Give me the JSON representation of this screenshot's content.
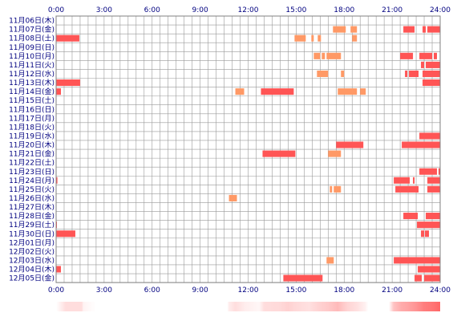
{
  "chart_data": {
    "type": "heatmap",
    "title": "",
    "xlabel": "",
    "ylabel": "",
    "xlim": [
      0,
      24
    ],
    "x_ticks": [
      "0:00",
      "3:00",
      "6:00",
      "9:00",
      "12:00",
      "15:00",
      "18:00",
      "21:00",
      "24:00"
    ],
    "grid": true,
    "colors": {
      "bar_light": "#ff9966",
      "bar_dark": "#ff5555",
      "grid": "#999999",
      "labels": "#000080",
      "density_base": "#ffffff",
      "density_peak": "#ff6666"
    },
    "rows": [
      {
        "label": "11月06日(木)",
        "segments": []
      },
      {
        "label": "11月07日(金)",
        "segments": [
          [
            17.3,
            18.1
          ],
          [
            18.4,
            18.8
          ],
          [
            21.7,
            22.4
          ],
          [
            22.9,
            23.1
          ],
          [
            23.2,
            24.0
          ]
        ]
      },
      {
        "label": "11月08日(土)",
        "segments": [
          [
            0.0,
            1.45
          ],
          [
            14.9,
            15.6
          ],
          [
            15.95,
            16.1
          ],
          [
            16.35,
            16.55
          ],
          [
            18.5,
            18.8
          ]
        ]
      },
      {
        "label": "11月09日(日)",
        "segments": []
      },
      {
        "label": "11月10日(月)",
        "segments": [
          [
            16.1,
            16.5
          ],
          [
            16.6,
            16.8
          ],
          [
            16.9,
            17.8
          ],
          [
            21.5,
            22.3
          ],
          [
            22.7,
            23.5
          ],
          [
            23.6,
            23.8
          ]
        ]
      },
      {
        "label": "11月11日(火)",
        "segments": [
          [
            22.8,
            23.0
          ],
          [
            23.1,
            24.0
          ]
        ]
      },
      {
        "label": "11月12日(水)",
        "segments": [
          [
            16.3,
            17.0
          ],
          [
            17.8,
            18.0
          ],
          [
            21.8,
            21.95
          ],
          [
            22.05,
            22.65
          ],
          [
            22.9,
            24.0
          ]
        ]
      },
      {
        "label": "11月13日(木)",
        "segments": [
          [
            0.0,
            1.5
          ],
          [
            22.9,
            24.0
          ]
        ]
      },
      {
        "label": "11月14日(金)",
        "segments": [
          [
            0.0,
            0.3
          ],
          [
            11.2,
            11.75
          ],
          [
            12.8,
            14.85
          ],
          [
            17.6,
            18.8
          ],
          [
            19.0,
            19.35
          ]
        ]
      },
      {
        "label": "11月15日(土)",
        "segments": []
      },
      {
        "label": "11月16日(日)",
        "segments": []
      },
      {
        "label": "11月17日(月)",
        "segments": []
      },
      {
        "label": "11月18日(火)",
        "segments": []
      },
      {
        "label": "11月19日(水)",
        "segments": [
          [
            22.7,
            24.0
          ]
        ]
      },
      {
        "label": "11月20日(木)",
        "segments": [
          [
            17.5,
            19.2
          ],
          [
            21.6,
            24.0
          ]
        ]
      },
      {
        "label": "11月21日(金)",
        "segments": [
          [
            12.9,
            14.95
          ],
          [
            17.0,
            17.8
          ]
        ]
      },
      {
        "label": "11月22日(土)",
        "segments": []
      },
      {
        "label": "11月23日(日)",
        "segments": [
          [
            22.7,
            23.8
          ],
          [
            23.9,
            24.0
          ]
        ]
      },
      {
        "label": "11月24日(月)",
        "segments": [
          [
            0.0,
            0.08
          ],
          [
            21.1,
            22.1
          ],
          [
            22.3,
            22.4
          ],
          [
            23.2,
            24.0
          ]
        ]
      },
      {
        "label": "11月25日(火)",
        "segments": [
          [
            17.1,
            17.25
          ],
          [
            17.35,
            17.8
          ],
          [
            21.2,
            22.65
          ],
          [
            23.2,
            24.0
          ]
        ]
      },
      {
        "label": "11月26日(水)",
        "segments": [
          [
            10.8,
            11.3
          ]
        ]
      },
      {
        "label": "11月27日(木)",
        "segments": []
      },
      {
        "label": "11月28日(金)",
        "segments": [
          [
            21.7,
            22.6
          ],
          [
            23.1,
            24.0
          ]
        ]
      },
      {
        "label": "11月29日(土)",
        "segments": [
          [
            0.0,
            0.05
          ],
          [
            22.55,
            24.0
          ]
        ]
      },
      {
        "label": "11月30日(日)",
        "segments": [
          [
            0.0,
            1.2
          ],
          [
            22.8,
            23.0
          ],
          [
            23.05,
            23.3
          ]
        ]
      },
      {
        "label": "12月01日(月)",
        "segments": []
      },
      {
        "label": "12月02日(火)",
        "segments": []
      },
      {
        "label": "12月03日(水)",
        "segments": [
          [
            16.9,
            17.35
          ],
          [
            21.1,
            24.0
          ]
        ]
      },
      {
        "label": "12月04日(木)",
        "segments": [
          [
            0.0,
            0.3
          ],
          [
            22.6,
            24.0
          ]
        ]
      },
      {
        "label": "12月05日(金)",
        "segments": [
          [
            14.2,
            16.65
          ],
          [
            22.4,
            22.85
          ],
          [
            23.0,
            24.0
          ]
        ]
      }
    ],
    "density": [
      [
        0,
        0
      ],
      [
        0.6,
        0.22
      ],
      [
        1.6,
        0.22
      ],
      [
        1.7,
        0.08
      ],
      [
        2.5,
        0.0
      ],
      [
        10.7,
        0.0
      ],
      [
        10.8,
        0.12
      ],
      [
        11.2,
        0.22
      ],
      [
        11.8,
        0.12
      ],
      [
        12.7,
        0.05
      ],
      [
        13.0,
        0.22
      ],
      [
        14.0,
        0.25
      ],
      [
        14.5,
        0.3
      ],
      [
        15.0,
        0.25
      ],
      [
        15.8,
        0.2
      ],
      [
        16.5,
        0.3
      ],
      [
        17.0,
        0.35
      ],
      [
        17.6,
        0.45
      ],
      [
        18.2,
        0.28
      ],
      [
        18.8,
        0.2
      ],
      [
        19.3,
        0.1
      ],
      [
        19.5,
        0.0
      ],
      [
        20.8,
        0.0
      ],
      [
        21.1,
        0.4
      ],
      [
        21.6,
        0.55
      ],
      [
        22.0,
        0.6
      ],
      [
        22.5,
        0.7
      ],
      [
        23.0,
        0.85
      ],
      [
        23.5,
        0.9
      ],
      [
        24,
        1.0
      ]
    ]
  }
}
